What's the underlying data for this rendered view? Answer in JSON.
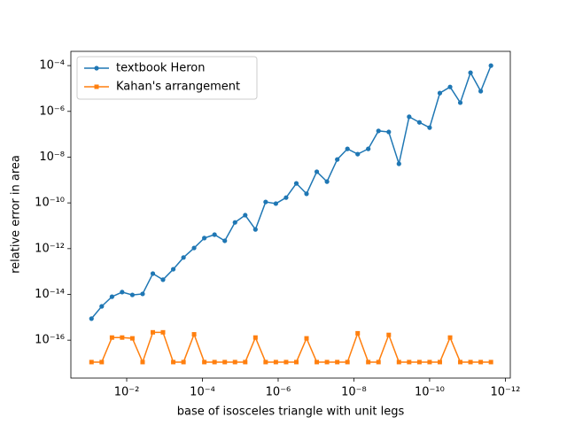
{
  "chart_data": {
    "type": "line",
    "xlabel": "base of isosceles triangle with unit legs",
    "ylabel": "relative error in area",
    "xscale": "log",
    "yscale": "log",
    "legend": "upper left",
    "x": [
      0.0851,
      0.0457,
      0.0245,
      0.0132,
      0.00708,
      0.0038,
      0.00204,
      0.0011,
      0.000589,
      0.000316,
      0.000166,
      8.91e-05,
      4.79e-05,
      2.57e-05,
      1.38e-05,
      7.41e-06,
      3.98e-06,
      2.14e-06,
      1.15e-06,
      6.17e-07,
      3.31e-07,
      1.78e-07,
      9.55e-08,
      5.13e-08,
      2.75e-08,
      1.48e-08,
      7.94e-09,
      4.17e-09,
      2.24e-09,
      1.2e-09,
      6.46e-10,
      3.47e-10,
      1.86e-10,
      1e-10,
      5.37e-11,
      2.88e-11,
      1.55e-11,
      8.32e-12,
      4.47e-12,
      2.4e-12
    ],
    "series": [
      {
        "name": "textbook Heron",
        "color": "#1f77b4",
        "marker": "circle",
        "values": [
          8.7e-16,
          3e-15,
          7.9e-15,
          1.26e-14,
          9.5e-15,
          1.05e-14,
          8.1e-14,
          4.4e-14,
          1.26e-13,
          4.1e-13,
          1.07e-12,
          2.9e-12,
          4.1e-12,
          2.2e-12,
          1.4e-11,
          2.9e-11,
          6.9e-12,
          1.1e-10,
          9.3e-11,
          1.7e-10,
          7.1e-10,
          2.5e-10,
          2.3e-09,
          8.5e-10,
          7.9e-09,
          2.3e-08,
          1.35e-08,
          2.3e-08,
          1.4e-07,
          1.26e-07,
          5.1e-09,
          5.8e-07,
          3.3e-07,
          1.95e-07,
          6.3e-06,
          1.17e-05,
          2.4e-06,
          4.9e-05,
          7.6e-06,
          0.0001
        ]
      },
      {
        "name": "Kahan's arrangement",
        "color": "#ff7f0e",
        "marker": "square",
        "values": [
          1.1e-17,
          1.1e-17,
          1.3e-16,
          1.3e-16,
          1.2e-16,
          1.1e-17,
          2.2e-16,
          2.2e-16,
          1.1e-17,
          1.1e-17,
          1.8e-16,
          1.1e-17,
          1.1e-17,
          1.1e-17,
          1.1e-17,
          1.1e-17,
          1.3e-16,
          1.1e-17,
          1.1e-17,
          1.1e-17,
          1.1e-17,
          1.2e-16,
          1.1e-17,
          1.1e-17,
          1.1e-17,
          1.1e-17,
          2e-16,
          1.1e-17,
          1.1e-17,
          1.7e-16,
          1.1e-17,
          1.1e-17,
          1.1e-17,
          1.1e-17,
          1.1e-17,
          1.3e-16,
          1.1e-17,
          1.1e-17,
          1.1e-17,
          1.1e-17
        ]
      }
    ],
    "xlim": [
      0.298,
      7.4e-13
    ],
    "ylim": [
      2.2e-18,
      0.00042
    ],
    "xticks": [
      {
        "value": 0.01,
        "label": "10⁻²"
      },
      {
        "value": 0.0001,
        "label": "10⁻⁴"
      },
      {
        "value": 1e-06,
        "label": "10⁻⁶"
      },
      {
        "value": 1e-08,
        "label": "10⁻⁸"
      },
      {
        "value": 1e-10,
        "label": "10⁻¹⁰"
      },
      {
        "value": 1e-12,
        "label": "10⁻¹²"
      }
    ],
    "yticks": [
      {
        "value": 1e-16,
        "label": "10⁻¹⁶"
      },
      {
        "value": 1e-14,
        "label": "10⁻¹⁴"
      },
      {
        "value": 1e-12,
        "label": "10⁻¹²"
      },
      {
        "value": 1e-10,
        "label": "10⁻¹⁰"
      },
      {
        "value": 1e-08,
        "label": "10⁻⁸"
      },
      {
        "value": 1e-06,
        "label": "10⁻⁶"
      },
      {
        "value": 0.0001,
        "label": "10⁻⁴"
      }
    ]
  }
}
